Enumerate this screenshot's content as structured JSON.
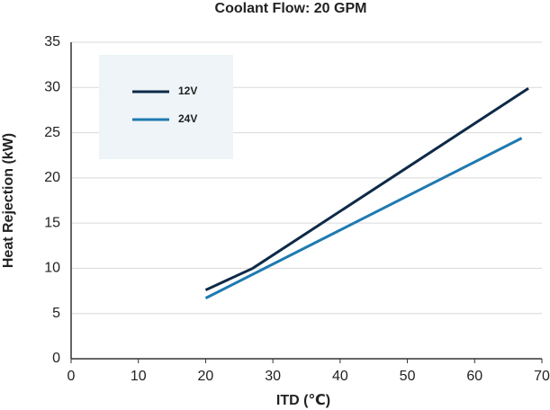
{
  "chart_data": {
    "type": "line",
    "title": "Coolant Flow: 20 GPM",
    "x_label": "ITD (℃)",
    "y_label": "Heat Rejection (kW)",
    "series": [
      {
        "name": "12V",
        "color": "#0e2a47",
        "x": [
          20,
          27,
          68
        ],
        "values": [
          7.6,
          10,
          29.9
        ]
      },
      {
        "name": "24V",
        "color": "#1f7ab0",
        "x": [
          20,
          67
        ],
        "values": [
          6.7,
          24.4
        ]
      }
    ],
    "xlim": [
      0,
      70
    ],
    "xticks": [
      0,
      10,
      20,
      30,
      40,
      50,
      60,
      70
    ],
    "ylim": [
      0,
      35
    ],
    "yticks": [
      0,
      5,
      10,
      15,
      20,
      25,
      30,
      35
    ],
    "grid": true,
    "legend": "upper left"
  }
}
